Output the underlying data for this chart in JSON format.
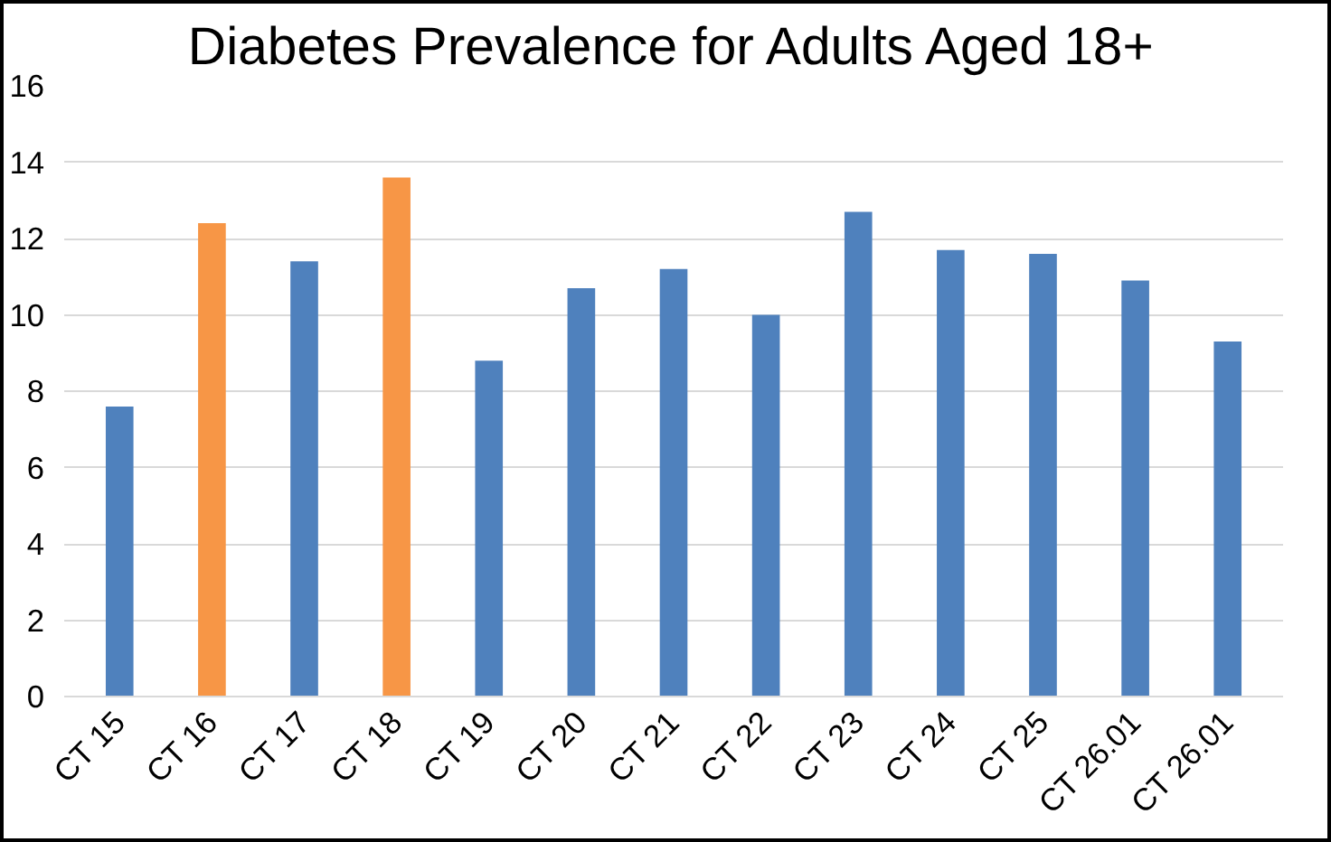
{
  "chart_data": {
    "type": "bar",
    "title": "Diabetes Prevalence for Adults Aged 18+",
    "categories": [
      "CT 15",
      "CT 16",
      "CT 17",
      "CT 18",
      "CT 19",
      "CT 20",
      "CT 21",
      "CT 22",
      "CT 23",
      "CT 24",
      "CT 25",
      "CT 26.01",
      "CT 26.01"
    ],
    "values": [
      7.6,
      12.4,
      11.4,
      13.6,
      8.8,
      10.7,
      11.2,
      10.0,
      12.7,
      11.7,
      11.6,
      10.9,
      9.3
    ],
    "colors": [
      "#4f81bd",
      "#f79646",
      "#4f81bd",
      "#f79646",
      "#4f81bd",
      "#4f81bd",
      "#4f81bd",
      "#4f81bd",
      "#4f81bd",
      "#4f81bd",
      "#4f81bd",
      "#4f81bd",
      "#4f81bd"
    ],
    "ylim": [
      0,
      16
    ],
    "yticks": [
      0,
      2,
      4,
      6,
      8,
      10,
      12,
      14,
      16
    ],
    "grid": "y"
  }
}
